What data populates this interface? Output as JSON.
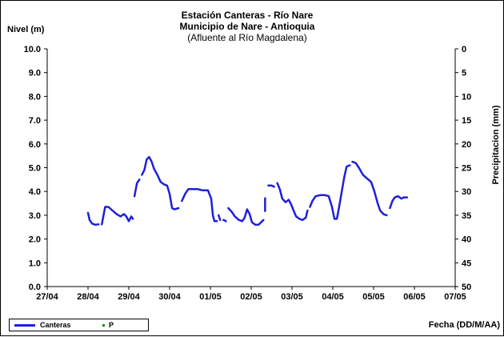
{
  "chart_data": {
    "type": "line",
    "title": [
      "Estación Canteras - Río Nare",
      "Municipio de Nare - Antioquia",
      "(Afluente al Río Magdalena)"
    ],
    "ylabel": "Nivel (m)",
    "y2label": "Precipitacion (mm)",
    "xlabel": "Fecha (DD/M/AA)",
    "x_ticks": [
      "27/04",
      "28/04",
      "29/04",
      "30/04",
      "01/05",
      "02/05",
      "03/05",
      "04/05",
      "05/05",
      "06/05",
      "07/05"
    ],
    "y_ticks": [
      "0.0",
      "1.0",
      "2.0",
      "3.0",
      "4.0",
      "5.0",
      "6.0",
      "7.0",
      "8.0",
      "9.0",
      "10.0"
    ],
    "y2_ticks": [
      "0",
      "5",
      "10",
      "15",
      "20",
      "25",
      "30",
      "35",
      "40",
      "45",
      "50"
    ],
    "xlim": [
      0,
      10
    ],
    "ylim": [
      0,
      10
    ],
    "y2lim": [
      0,
      50
    ],
    "y2_inverted": true,
    "grid": false,
    "legend_position": "bottom-left",
    "series": [
      {
        "name": "Canteras",
        "color": "#1f1fd9",
        "segments": [
          [
            [
              1.0,
              3.1
            ],
            [
              1.04,
              2.8
            ],
            [
              1.1,
              2.65
            ],
            [
              1.18,
              2.6
            ],
            [
              1.26,
              2.62
            ]
          ],
          [
            [
              1.34,
              2.62
            ],
            [
              1.42,
              3.35
            ],
            [
              1.5,
              3.35
            ],
            [
              1.6,
              3.2
            ],
            [
              1.7,
              3.05
            ],
            [
              1.8,
              2.95
            ],
            [
              1.88,
              3.05
            ],
            [
              1.94,
              2.95
            ],
            [
              2.0,
              2.75
            ],
            [
              2.06,
              2.95
            ],
            [
              2.1,
              2.85
            ]
          ],
          [
            [
              2.14,
              3.8
            ],
            [
              2.2,
              4.35
            ],
            [
              2.26,
              4.5
            ]
          ],
          [
            [
              2.32,
              4.7
            ],
            [
              2.38,
              4.9
            ],
            [
              2.44,
              5.35
            ],
            [
              2.5,
              5.45
            ],
            [
              2.56,
              5.25
            ],
            [
              2.62,
              4.95
            ],
            [
              2.7,
              4.7
            ],
            [
              2.78,
              4.4
            ],
            [
              2.86,
              4.3
            ],
            [
              2.94,
              4.25
            ],
            [
              3.0,
              3.9
            ],
            [
              3.06,
              3.3
            ],
            [
              3.12,
              3.25
            ],
            [
              3.22,
              3.3
            ]
          ],
          [
            [
              3.3,
              3.6
            ],
            [
              3.38,
              3.9
            ],
            [
              3.46,
              4.1
            ],
            [
              3.56,
              4.1
            ],
            [
              3.68,
              4.1
            ],
            [
              3.8,
              4.05
            ],
            [
              3.94,
              4.05
            ],
            [
              4.02,
              3.7
            ],
            [
              4.06,
              3.0
            ],
            [
              4.1,
              2.75
            ],
            [
              4.16,
              2.75
            ]
          ],
          [
            [
              4.2,
              3.0
            ],
            [
              4.24,
              2.8
            ]
          ],
          [
            [
              4.32,
              2.8
            ],
            [
              4.38,
              2.75
            ]
          ],
          [
            [
              4.44,
              3.3
            ],
            [
              4.52,
              3.15
            ],
            [
              4.6,
              2.95
            ],
            [
              4.7,
              2.8
            ],
            [
              4.78,
              2.75
            ],
            [
              4.84,
              2.9
            ],
            [
              4.9,
              3.25
            ],
            [
              4.96,
              3.05
            ],
            [
              5.02,
              2.7
            ],
            [
              5.1,
              2.6
            ],
            [
              5.18,
              2.6
            ],
            [
              5.24,
              2.7
            ],
            [
              5.3,
              2.8
            ]
          ],
          [
            [
              5.34,
              3.65
            ]
          ],
          [
            [
              5.42,
              4.25
            ],
            [
              5.5,
              4.25
            ],
            [
              5.56,
              4.2
            ]
          ],
          [
            [
              5.64,
              4.35
            ],
            [
              5.7,
              4.1
            ],
            [
              5.76,
              3.7
            ],
            [
              5.84,
              3.55
            ],
            [
              5.92,
              3.65
            ],
            [
              5.98,
              3.45
            ],
            [
              6.04,
              3.2
            ],
            [
              6.1,
              2.95
            ],
            [
              6.18,
              2.85
            ],
            [
              6.26,
              2.8
            ],
            [
              6.34,
              2.9
            ],
            [
              6.38,
              3.2
            ]
          ],
          [
            [
              6.44,
              3.35
            ],
            [
              6.5,
              3.6
            ],
            [
              6.58,
              3.8
            ],
            [
              6.7,
              3.85
            ],
            [
              6.8,
              3.85
            ],
            [
              6.9,
              3.8
            ],
            [
              6.98,
              3.35
            ],
            [
              7.04,
              2.85
            ],
            [
              7.1,
              2.85
            ],
            [
              7.16,
              3.4
            ],
            [
              7.22,
              4.0
            ],
            [
              7.28,
              4.6
            ],
            [
              7.34,
              5.05
            ],
            [
              7.42,
              5.1
            ]
          ],
          [
            [
              7.48,
              5.25
            ],
            [
              7.56,
              5.2
            ],
            [
              7.64,
              5.0
            ],
            [
              7.74,
              4.7
            ],
            [
              7.84,
              4.55
            ],
            [
              7.94,
              4.4
            ],
            [
              8.02,
              4.0
            ],
            [
              8.1,
              3.5
            ],
            [
              8.16,
              3.2
            ],
            [
              8.24,
              3.05
            ],
            [
              8.32,
              3.0
            ]
          ],
          [
            [
              8.4,
              3.3
            ],
            [
              8.46,
              3.6
            ],
            [
              8.52,
              3.75
            ],
            [
              8.6,
              3.8
            ],
            [
              8.68,
              3.7
            ],
            [
              8.74,
              3.75
            ],
            [
              8.82,
              3.75
            ]
          ]
        ]
      },
      {
        "name": "P",
        "color": "#1a8a1a",
        "values": []
      }
    ]
  },
  "legend": {
    "canteras": "Canteras",
    "p": "P"
  }
}
